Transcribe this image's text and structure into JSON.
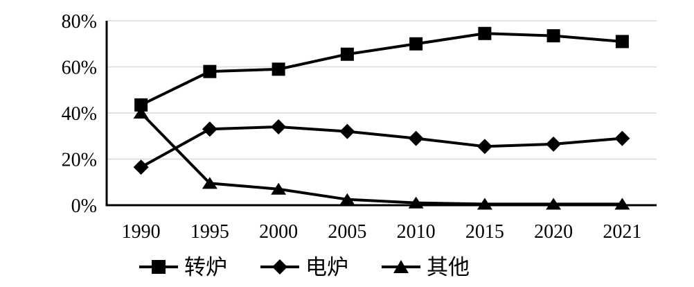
{
  "chart_data": {
    "type": "line",
    "title": "",
    "xlabel": "",
    "ylabel": "",
    "categories": [
      "1990",
      "1995",
      "2000",
      "2005",
      "2010",
      "2015",
      "2020",
      "2021"
    ],
    "series": [
      {
        "name": "转炉",
        "marker": "square",
        "values": [
          43.5,
          58.0,
          59.0,
          65.5,
          70.0,
          74.5,
          73.5,
          71.0
        ]
      },
      {
        "name": "电炉",
        "marker": "diamond",
        "values": [
          16.5,
          33.0,
          34.0,
          32.0,
          29.0,
          25.5,
          26.5,
          29.0
        ]
      },
      {
        "name": "其他",
        "marker": "triangle",
        "values": [
          40.0,
          9.5,
          7.0,
          2.5,
          1.0,
          0.5,
          0.5,
          0.5
        ]
      }
    ],
    "ylim": [
      0,
      80
    ],
    "ytick_values": [
      0,
      20,
      40,
      60,
      80
    ],
    "ytick_labels": [
      "0%",
      "20%",
      "40%",
      "60%",
      "80%"
    ],
    "grid": "horizontal",
    "legend_position": "bottom",
    "colors": {
      "series": "#000000",
      "grid": "#d9d9d9",
      "axis": "#000000",
      "background": "#ffffff"
    }
  }
}
